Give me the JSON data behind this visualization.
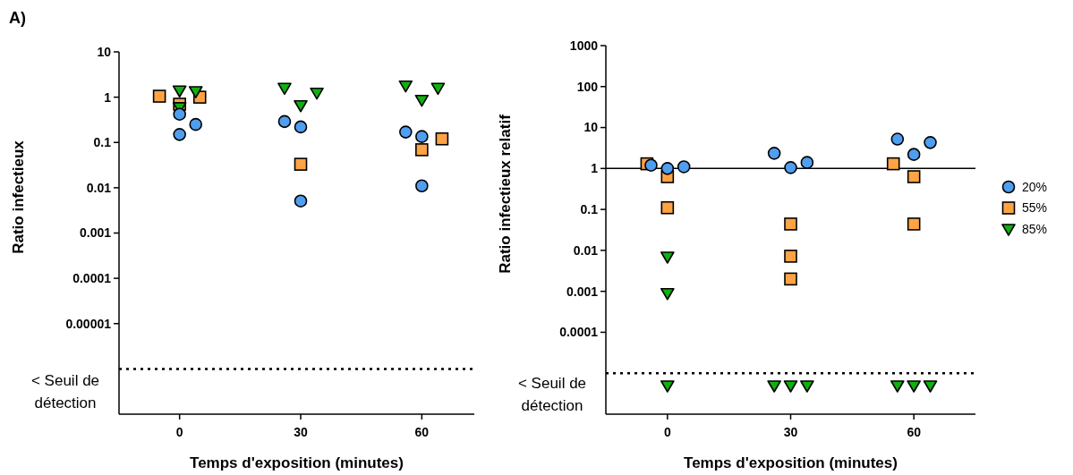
{
  "chart_data": [
    {
      "type": "scatter",
      "xlabel": "Temps d'exposition (minutes)",
      "ylabel": "Ratio infectieux",
      "annotations": [
        "A)"
      ],
      "log": "y",
      "xlim": [
        -15,
        73
      ],
      "xticks": [
        0,
        30,
        60
      ],
      "ylim": [
        1e-07,
        10
      ],
      "yticks": [
        10,
        1,
        0.1,
        0.01,
        0.001,
        0.0001,
        {
          "value": 1e-05,
          "label": "0.00001"
        }
      ],
      "grid": false,
      "legend": false,
      "ref_lines": [
        {
          "axis": "y",
          "value": 1e-06,
          "label": "< Seuil de détection",
          "line_style": "dotted",
          "color": "#000000"
        }
      ],
      "series": [
        {
          "color": "#4f9ef0",
          "marker": "circle",
          "x": [
            0,
            4,
            0,
            26,
            30,
            30,
            56,
            60,
            60
          ],
          "values": [
            0.42,
            0.25,
            0.15,
            0.29,
            0.22,
            0.0051,
            0.17,
            0.135,
            0.011
          ]
        },
        {
          "color": "#ffa345",
          "marker": "square",
          "x": [
            -5,
            0,
            5,
            30,
            65,
            60
          ],
          "values": [
            1.05,
            0.7,
            1.0,
            0.033,
            0.12,
            0.069
          ]
        },
        {
          "color": "#10b010",
          "marker": "triangle",
          "x": [
            0,
            4,
            0,
            26,
            30,
            34,
            56,
            60,
            64
          ],
          "values": [
            1.4,
            1.35,
            0.6,
            1.6,
            0.66,
            1.25,
            1.8,
            0.87,
            1.6
          ]
        }
      ]
    },
    {
      "type": "scatter",
      "xlabel": "Temps d'exposition (minutes)",
      "ylabel": "Ratio infectieux relatif",
      "log": "y",
      "xlim": [
        -15,
        75
      ],
      "xticks": [
        0,
        30,
        60
      ],
      "ylim": [
        1e-06,
        1000
      ],
      "yticks": [
        1000,
        100,
        10,
        1,
        0.1,
        0.01,
        0.001,
        0.0001
      ],
      "grid": false,
      "legend": "right",
      "ref_lines": [
        {
          "axis": "y",
          "value": 1,
          "line_style": "solid",
          "color": "#000000"
        },
        {
          "axis": "y",
          "value": 1e-05,
          "label": "< Seuil de détection",
          "line_style": "dotted",
          "color": "#000000"
        }
      ],
      "series": [
        {
          "name": "20%",
          "color": "#4f9ef0",
          "marker": "circle",
          "x": [
            -4,
            0,
            4,
            26,
            30,
            34,
            56,
            60,
            64
          ],
          "values": [
            1.2,
            1.0,
            1.1,
            2.35,
            1.05,
            1.4,
            5.2,
            2.2,
            4.3
          ]
        },
        {
          "name": "55%",
          "color": "#ffa345",
          "marker": "square",
          "x": [
            -5,
            0,
            0,
            30,
            30,
            30,
            55,
            60,
            60
          ],
          "values": [
            1.3,
            0.63,
            0.11,
            0.044,
            0.0072,
            0.002,
            1.3,
            0.63,
            0.044
          ]
        },
        {
          "name": "85%",
          "color": "#10b010",
          "marker": "triangle",
          "x": [
            0,
            0,
            0,
            26,
            30,
            34,
            56,
            60,
            64
          ],
          "values": [
            0.007,
            0.0009,
            5e-06,
            5e-06,
            5e-06,
            5e-06,
            5e-06,
            5e-06,
            5e-06
          ]
        }
      ]
    }
  ]
}
